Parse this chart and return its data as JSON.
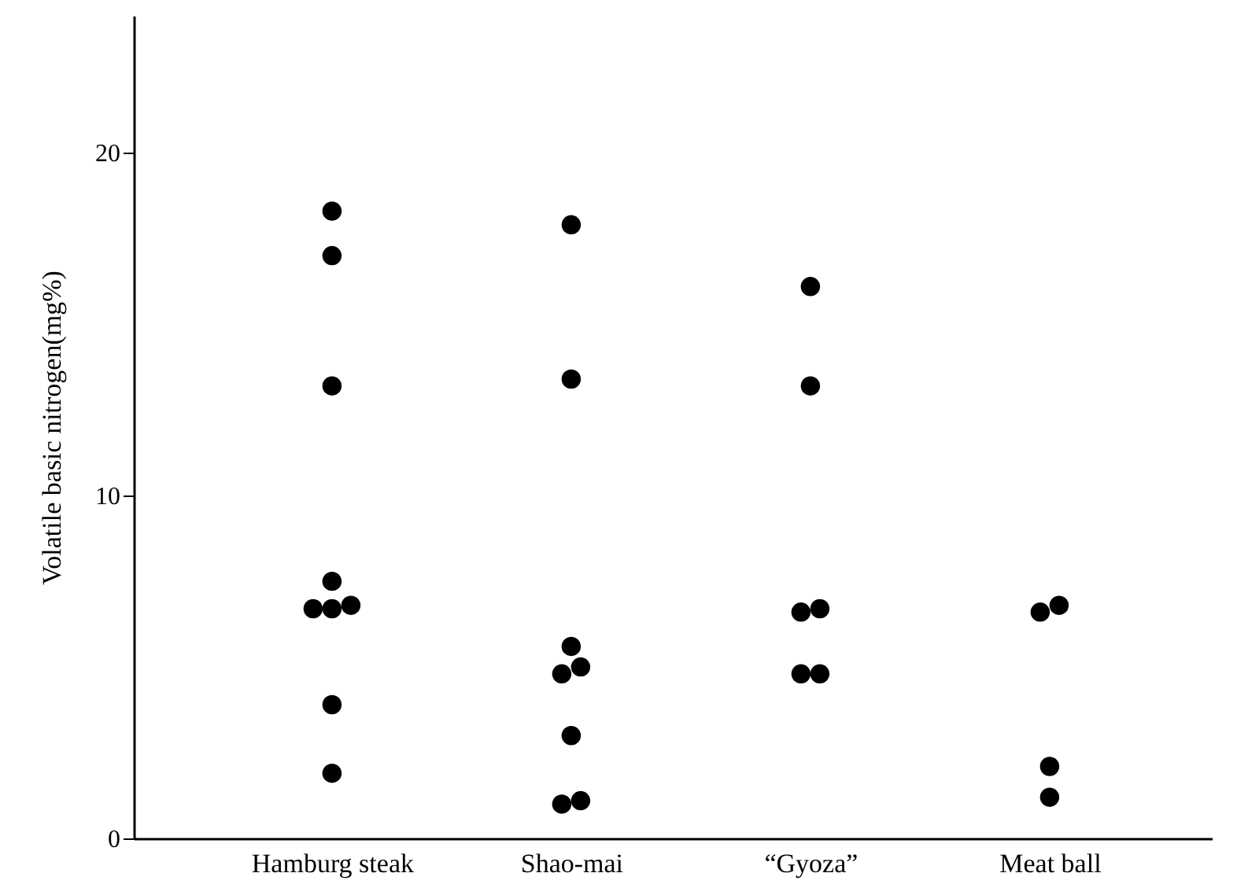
{
  "chart_data": {
    "type": "scatter",
    "ylabel": "Volatile basic nitrogen(mg%)",
    "categories": [
      "Hamburg steak",
      "Shao-mai",
      "“Gyoza”",
      "Meat ball"
    ],
    "ylim": [
      0,
      24
    ],
    "yticks": [
      0,
      10,
      20
    ],
    "grid": false,
    "marker": "circle",
    "series": [
      {
        "color": "#000000",
        "x": [
          "Hamburg steak",
          "Hamburg steak",
          "Hamburg steak",
          "Hamburg steak",
          "Hamburg steak",
          "Hamburg steak",
          "Hamburg steak",
          "Hamburg steak",
          "Hamburg steak",
          "Shao-mai",
          "Shao-mai",
          "Shao-mai",
          "Shao-mai",
          "Shao-mai",
          "Shao-mai",
          "Shao-mai",
          "Shao-mai",
          "“Gyoza”",
          "“Gyoza”",
          "“Gyoza”",
          "“Gyoza”",
          "“Gyoza”",
          "“Gyoza”",
          "Meat ball",
          "Meat ball",
          "Meat ball",
          "Meat ball"
        ],
        "values": [
          18.3,
          17.0,
          13.2,
          7.5,
          6.7,
          6.7,
          6.8,
          3.9,
          1.9,
          17.9,
          13.4,
          5.6,
          4.8,
          5.0,
          3.0,
          1.1,
          1.0,
          16.1,
          13.2,
          6.6,
          6.7,
          4.8,
          4.8,
          6.8,
          6.6,
          2.1,
          1.2
        ]
      }
    ]
  }
}
